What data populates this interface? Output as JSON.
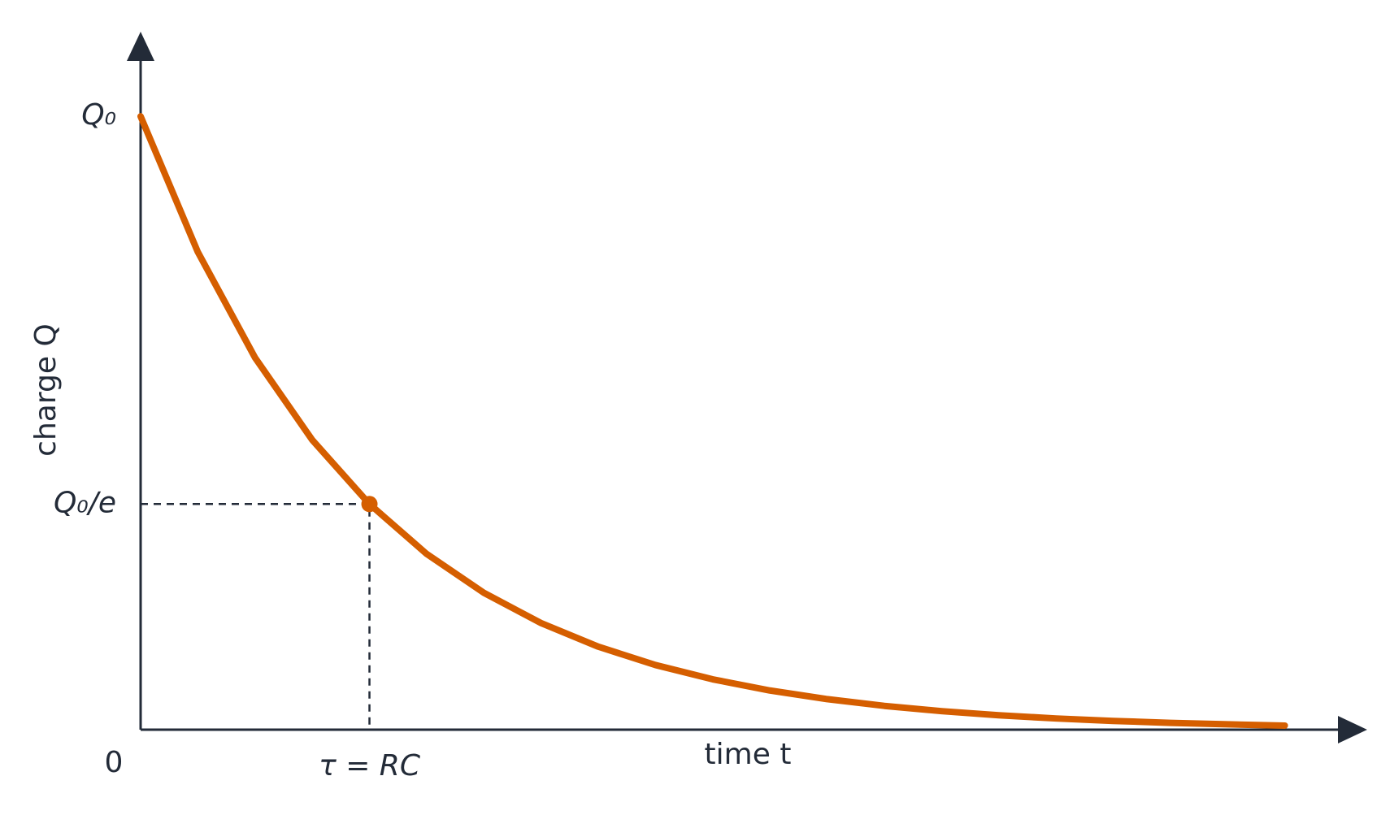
{
  "chart_data": {
    "type": "line",
    "x_label": "time t",
    "y_label": "charge Q",
    "origin_label": "0",
    "x": [
      0,
      0.25,
      0.5,
      0.75,
      1,
      1.25,
      1.5,
      1.75,
      2,
      2.25,
      2.5,
      2.75,
      3,
      3.25,
      3.5,
      3.75,
      4,
      4.25,
      4.5,
      4.75,
      5
    ],
    "values": [
      1,
      0.7788,
      0.6065,
      0.4724,
      0.3679,
      0.2865,
      0.2231,
      0.1738,
      0.1353,
      0.1054,
      0.0821,
      0.0639,
      0.0498,
      0.0388,
      0.0302,
      0.0235,
      0.0183,
      0.0143,
      0.0111,
      0.0087,
      0.0067
    ],
    "color": "#d55e00",
    "xlim": [
      0,
      5.36
    ],
    "ylim": [
      0,
      1.138
    ],
    "xticks": [
      {
        "value": 1,
        "label": "τ = RC"
      }
    ],
    "yticks": [
      {
        "value": 1,
        "label": "Q₀"
      },
      {
        "value": 0.3679,
        "label": "Q₀/e"
      }
    ],
    "highlight": {
      "x": 1,
      "y": 0.3679
    },
    "grid": false
  }
}
